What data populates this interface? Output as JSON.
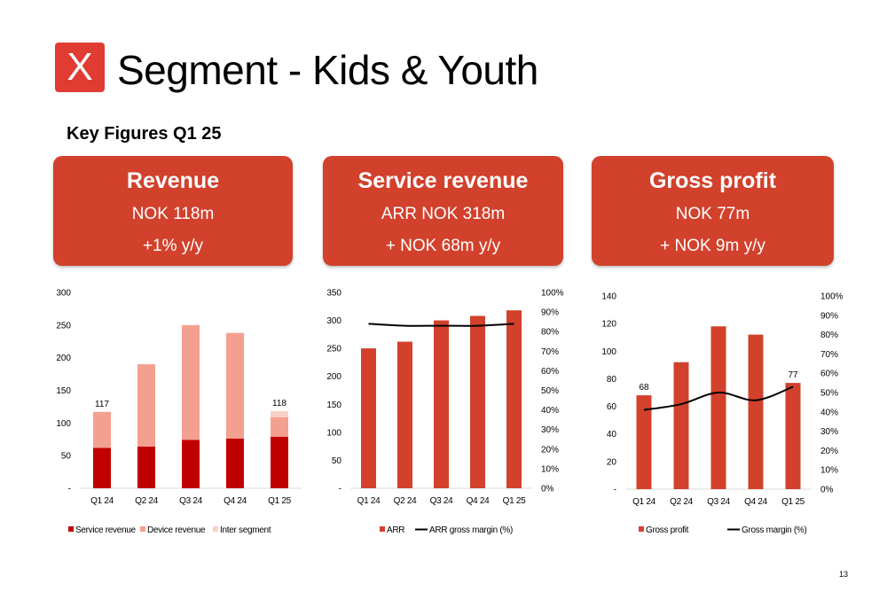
{
  "header": {
    "logo_text": "X",
    "title": "Segment - Kids & Youth",
    "subtitle": "Key Figures Q1 25",
    "brand_color": "#e03c31"
  },
  "cards": [
    {
      "heading": "Revenue",
      "line1": "NOK 118m",
      "line2": "+1% y/y"
    },
    {
      "heading": "Service revenue",
      "line1": "ARR NOK 318m",
      "line2": "+ NOK 68m y/y"
    },
    {
      "heading": "Gross profit",
      "line1": "NOK 77m",
      "line2": "+ NOK 9m y/y"
    }
  ],
  "page_number": "13",
  "chart_data": [
    {
      "type": "bar",
      "stacked": true,
      "categories": [
        "Q1 24",
        "Q2 24",
        "Q3 24",
        "Q4 24",
        "Q1 25"
      ],
      "series": [
        {
          "name": "Service revenue",
          "values": [
            62,
            64,
            74,
            76,
            79
          ],
          "color": "#c00000"
        },
        {
          "name": "Device revenue",
          "values": [
            55,
            126,
            176,
            162,
            30
          ],
          "color": "#f4a090"
        },
        {
          "name": "Inter segment",
          "values": [
            0,
            0,
            0,
            0,
            9
          ],
          "color": "#f9d0c8"
        }
      ],
      "data_labels": [
        {
          "index": 0,
          "text": "117",
          "value": 117
        },
        {
          "index": 4,
          "text": "118",
          "value": 118
        }
      ],
      "ylim": [
        0,
        300
      ],
      "yticks": [
        0,
        50,
        100,
        150,
        200,
        250,
        300
      ],
      "ytick_labels": [
        "-",
        "50",
        "100",
        "150",
        "200",
        "250",
        "300"
      ],
      "legend": "bottom",
      "grid": false
    },
    {
      "type": "bar",
      "categories": [
        "Q1 24",
        "Q2 24",
        "Q3 24",
        "Q4 24",
        "Q1 25"
      ],
      "series": [
        {
          "name": "ARR",
          "values": [
            250,
            262,
            300,
            308,
            318
          ],
          "color": "#d2412c"
        },
        {
          "name": "ARR gross margin (%)",
          "type": "line",
          "axis": "right",
          "values": [
            84,
            83,
            83,
            83,
            84
          ],
          "color": "#000000"
        }
      ],
      "ylim": [
        0,
        350
      ],
      "yticks": [
        0,
        50,
        100,
        150,
        200,
        250,
        300,
        350
      ],
      "ytick_labels": [
        "-",
        "50",
        "100",
        "150",
        "200",
        "250",
        "300",
        "350"
      ],
      "y2lim": [
        0,
        100
      ],
      "y2ticks": [
        0,
        10,
        20,
        30,
        40,
        50,
        60,
        70,
        80,
        90,
        100
      ],
      "y2tick_labels": [
        "0%",
        "10%",
        "20%",
        "30%",
        "40%",
        "50%",
        "60%",
        "70%",
        "80%",
        "90%",
        "100%"
      ],
      "legend": "bottom",
      "grid": false
    },
    {
      "type": "bar",
      "categories": [
        "Q1 24",
        "Q2 24",
        "Q3 24",
        "Q4 24",
        "Q1 25"
      ],
      "series": [
        {
          "name": "Gross profit",
          "values": [
            68,
            92,
            118,
            112,
            77
          ],
          "color": "#d2412c"
        },
        {
          "name": "Gross margin (%)",
          "type": "line",
          "axis": "right",
          "values": [
            41,
            44,
            50,
            46,
            53
          ],
          "color": "#000000"
        }
      ],
      "data_labels": [
        {
          "index": 0,
          "text": "68",
          "value": 68
        },
        {
          "index": 4,
          "text": "77",
          "value": 77
        }
      ],
      "ylim": [
        0,
        140
      ],
      "yticks": [
        0,
        20,
        40,
        60,
        80,
        100,
        120,
        140
      ],
      "ytick_labels": [
        "-",
        "20",
        "40",
        "60",
        "80",
        "100",
        "120",
        "140"
      ],
      "y2lim": [
        0,
        100
      ],
      "y2ticks": [
        0,
        10,
        20,
        30,
        40,
        50,
        60,
        70,
        80,
        90,
        100
      ],
      "y2tick_labels": [
        "0%",
        "10%",
        "20%",
        "30%",
        "40%",
        "50%",
        "60%",
        "70%",
        "80%",
        "90%",
        "100%"
      ],
      "legend": "bottom",
      "grid": false
    }
  ]
}
